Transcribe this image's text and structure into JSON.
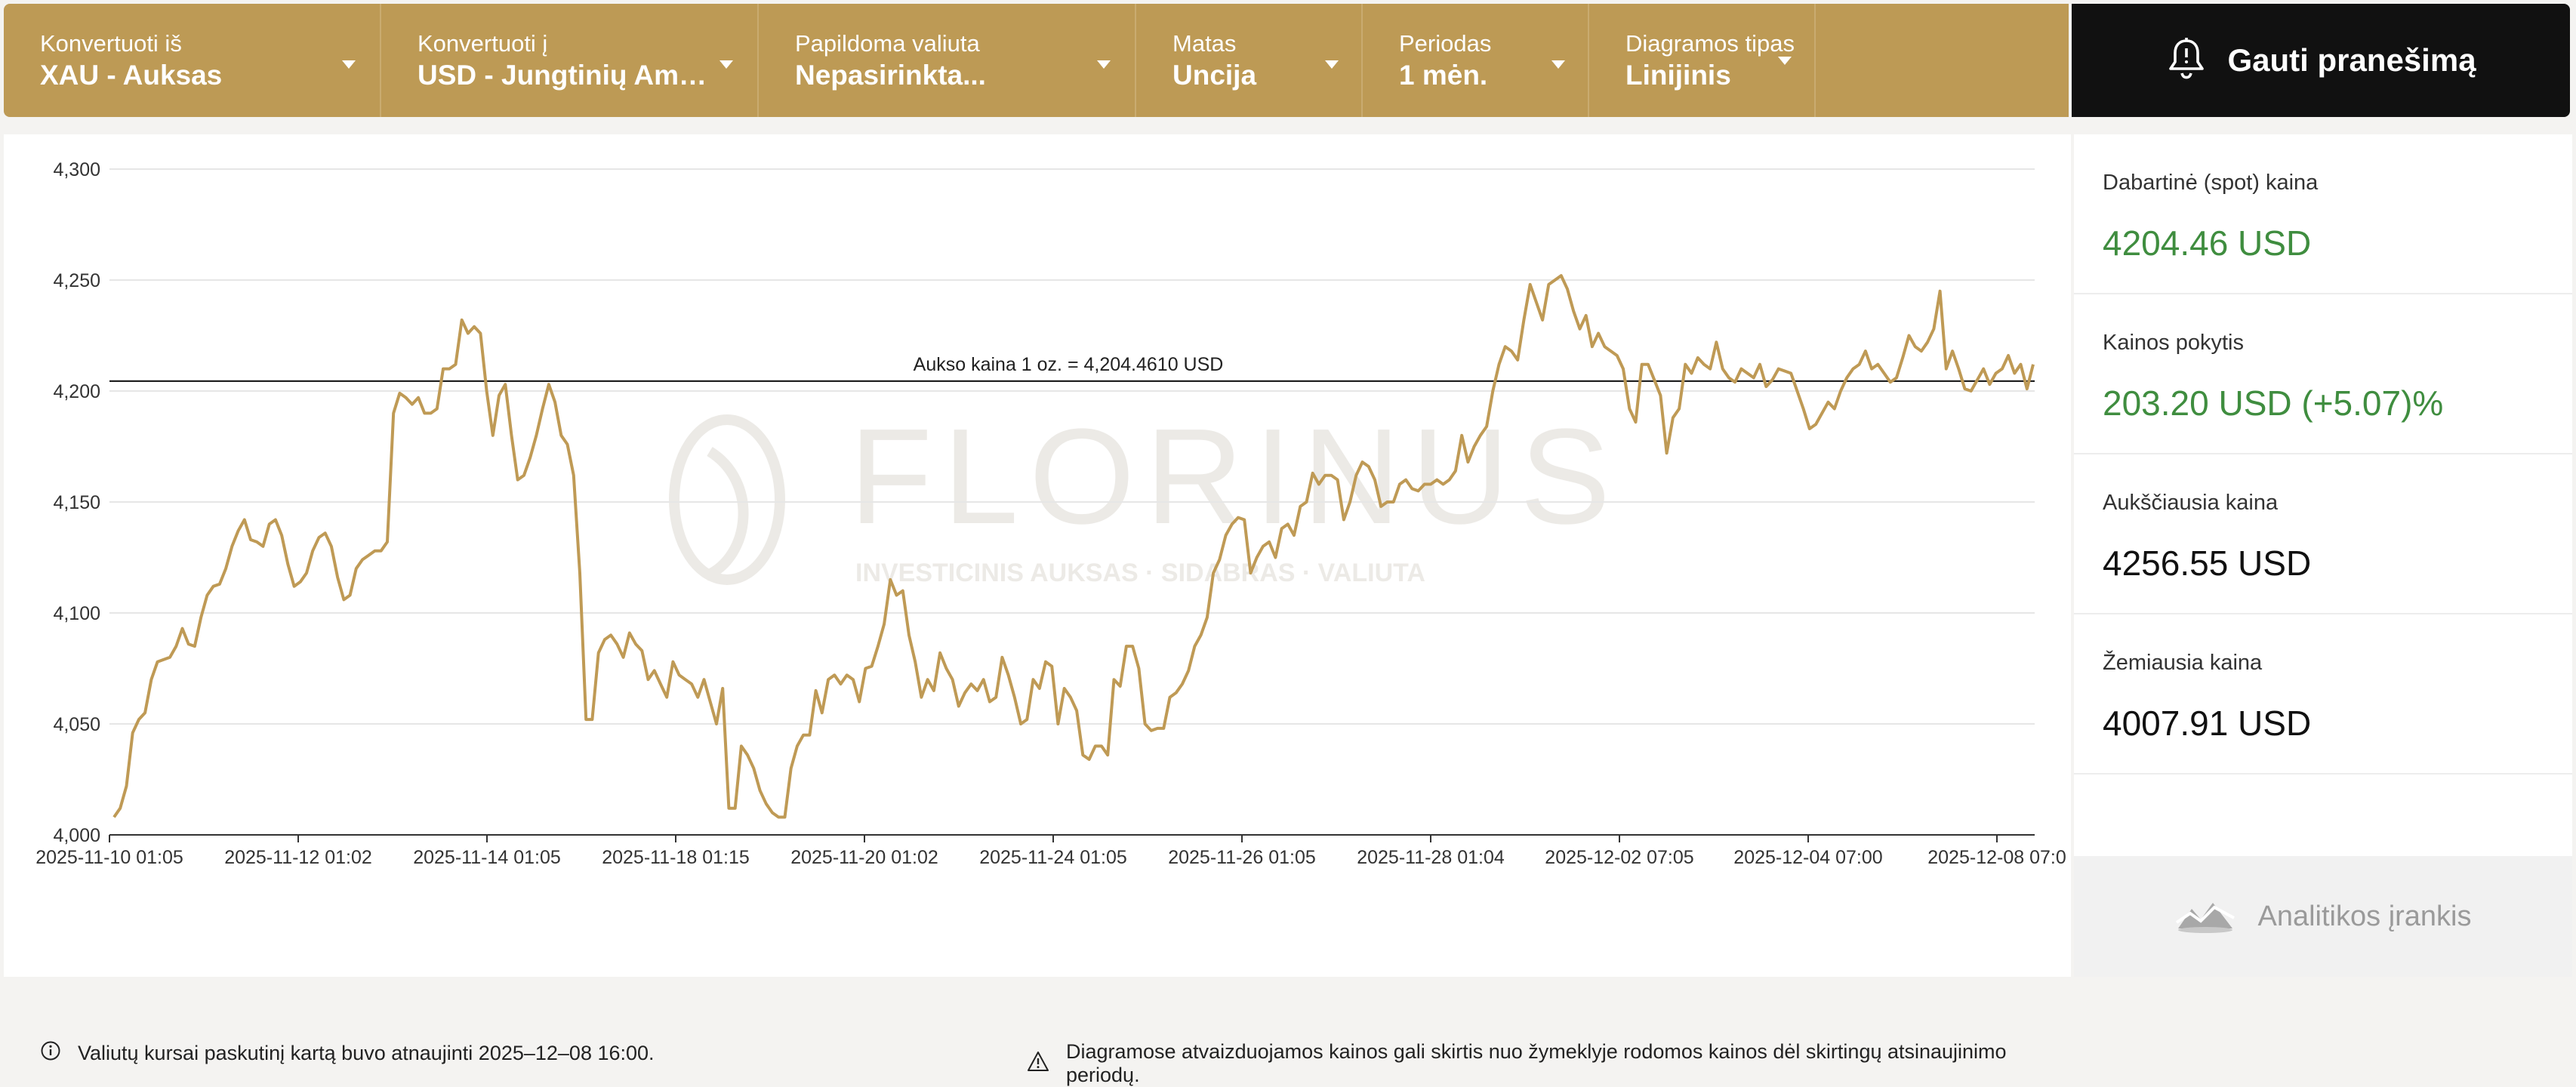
{
  "toolbar": {
    "from": {
      "label": "Konvertuoti iš",
      "value": "XAU - Auksas"
    },
    "to": {
      "label": "Konvertuoti į",
      "value": "USD - Jungtinių Amerikos Valstijų doleris"
    },
    "extra": {
      "label": "Papildoma valiuta",
      "value": "Nepasirinkta..."
    },
    "unit": {
      "label": "Matas",
      "value": "Uncija"
    },
    "period": {
      "label": "Periodas",
      "value": "1 mėn."
    },
    "chart_type": {
      "label": "Diagramos tipas",
      "value": "Linijinis"
    }
  },
  "notify_button": {
    "label": "Gauti pranešimą",
    "icon": "bell-icon"
  },
  "stats": {
    "spot": {
      "label": "Dabartinė (spot) kaina",
      "value": "4204.46 USD"
    },
    "change": {
      "label": "Kainos pokytis",
      "value": "203.20 USD (+5.07)%"
    },
    "high": {
      "label": "Aukščiausia kaina",
      "value": "4256.55 USD"
    },
    "low": {
      "label": "Žemiausia kaina",
      "value": "4007.91 USD"
    }
  },
  "analytics_button": {
    "label": "Analitikos įrankis",
    "icon": "mountain-chart-icon"
  },
  "watermark": {
    "brand": "FLORINUS",
    "tagline": "INVESTICINIS AUKSAS · SIDABRAS · VALIUTA"
  },
  "footnotes": {
    "updated": "Valiutų kursai paskutinį kartą buvo atnaujinti 2025–12–08 16:00.",
    "disclaimer": "Diagramose atvaizduojamos kainos gali skirtis nuo žymeklyje rodomos kainos dėl skirtingų atsinaujinimo periodų."
  },
  "colors": {
    "gold": "#bd9a55",
    "line": "#bf9a55",
    "green": "#3f8d3f",
    "dark": "#111111"
  },
  "chart_data": {
    "type": "line",
    "ylim": [
      4000,
      4300
    ],
    "yticks": [
      "4,000",
      "4,050",
      "4,100",
      "4,150",
      "4,200",
      "4,250",
      "4,300"
    ],
    "xticks": [
      "2025-11-10 01:05",
      "2025-11-12 01:02",
      "2025-11-14 01:05",
      "2025-11-18 01:15",
      "2025-11-20 01:02",
      "2025-11-24 01:05",
      "2025-11-26 01:05",
      "2025-11-28 01:04",
      "2025-12-02 07:05",
      "2025-12-04 07:00",
      "2025-12-08 07:0"
    ],
    "reference_line": {
      "value": 4204.461,
      "label": "Aukso kaina 1 oz. = 4,204.4610 USD"
    },
    "series": [
      {
        "values": [
          4008,
          4012,
          4022,
          4046,
          4052,
          4055,
          4070,
          4078,
          4079,
          4080,
          4085,
          4093,
          4086,
          4085,
          4098,
          4108,
          4112,
          4113,
          4120,
          4130,
          4137,
          4142,
          4133,
          4132,
          4130,
          4140,
          4142,
          4135,
          4122,
          4112,
          4114,
          4118,
          4128,
          4134,
          4136,
          4130,
          4116,
          4106,
          4108,
          4120,
          4124,
          4126,
          4128,
          4128,
          4132,
          4190,
          4199,
          4197,
          4194,
          4197,
          4190,
          4190,
          4192,
          4210,
          4210,
          4212,
          4232,
          4226,
          4229,
          4226,
          4200,
          4180,
          4198,
          4203,
          4180,
          4160,
          4162,
          4170,
          4180,
          4192,
          4203,
          4195,
          4180,
          4176,
          4162,
          4118,
          4052,
          4052,
          4082,
          4088,
          4090,
          4086,
          4080,
          4091,
          4086,
          4083,
          4070,
          4074,
          4068,
          4062,
          4078,
          4072,
          4070,
          4068,
          4062,
          4070,
          4060,
          4050,
          4066,
          4012,
          4012,
          4040,
          4036,
          4030,
          4020,
          4014,
          4010,
          4008,
          4008,
          4030,
          4040,
          4045,
          4045,
          4065,
          4055,
          4070,
          4072,
          4068,
          4072,
          4070,
          4060,
          4075,
          4076,
          4085,
          4095,
          4115,
          4108,
          4110,
          4090,
          4078,
          4062,
          4070,
          4065,
          4082,
          4075,
          4070,
          4058,
          4064,
          4068,
          4065,
          4070,
          4060,
          4062,
          4080,
          4072,
          4062,
          4050,
          4052,
          4070,
          4066,
          4078,
          4076,
          4050,
          4066,
          4062,
          4056,
          4036,
          4034,
          4040,
          4040,
          4036,
          4070,
          4067,
          4085,
          4085,
          4075,
          4050,
          4047,
          4048,
          4048,
          4062,
          4064,
          4068,
          4074,
          4085,
          4090,
          4098,
          4118,
          4124,
          4135,
          4140,
          4143,
          4142,
          4118,
          4125,
          4130,
          4132,
          4125,
          4138,
          4140,
          4135,
          4148,
          4150,
          4163,
          4158,
          4162,
          4162,
          4160,
          4142,
          4150,
          4162,
          4168,
          4166,
          4160,
          4148,
          4150,
          4150,
          4158,
          4160,
          4156,
          4155,
          4158,
          4158,
          4160,
          4158,
          4160,
          4164,
          4180,
          4168,
          4175,
          4180,
          4184,
          4200,
          4212,
          4220,
          4218,
          4214,
          4232,
          4248,
          4240,
          4232,
          4248,
          4250,
          4252,
          4246,
          4236,
          4228,
          4234,
          4220,
          4226,
          4220,
          4218,
          4216,
          4210,
          4192,
          4186,
          4212,
          4212,
          4205,
          4198,
          4172,
          4188,
          4192,
          4212,
          4208,
          4215,
          4212,
          4210,
          4222,
          4210,
          4206,
          4204,
          4210,
          4208,
          4206,
          4212,
          4202,
          4205,
          4210,
          4209,
          4208,
          4200,
          4192,
          4183,
          4185,
          4190,
          4195,
          4192,
          4200,
          4206,
          4210,
          4212,
          4218,
          4210,
          4212,
          4208,
          4204,
          4206,
          4215,
          4225,
          4220,
          4218,
          4222,
          4228,
          4245,
          4210,
          4218,
          4210,
          4201,
          4200,
          4205,
          4210,
          4203,
          4208,
          4210,
          4216,
          4208,
          4212,
          4201,
          4212
        ]
      }
    ]
  }
}
